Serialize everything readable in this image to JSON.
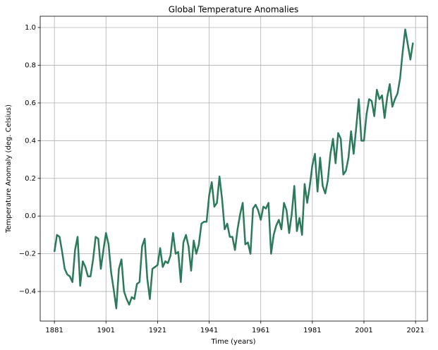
{
  "chart_data": {
    "type": "line",
    "title": "Global Temperature Anomalies",
    "x_label": "Time (years)",
    "y_label": "Temperature Anomaly (deg. Celsius)",
    "x": [
      1881,
      1882,
      1883,
      1884,
      1885,
      1886,
      1887,
      1888,
      1889,
      1890,
      1891,
      1892,
      1893,
      1894,
      1895,
      1896,
      1897,
      1898,
      1899,
      1900,
      1901,
      1902,
      1903,
      1904,
      1905,
      1906,
      1907,
      1908,
      1909,
      1910,
      1911,
      1912,
      1913,
      1914,
      1915,
      1916,
      1917,
      1918,
      1919,
      1920,
      1921,
      1922,
      1923,
      1924,
      1925,
      1926,
      1927,
      1928,
      1929,
      1930,
      1931,
      1932,
      1933,
      1934,
      1935,
      1936,
      1937,
      1938,
      1939,
      1940,
      1941,
      1942,
      1943,
      1944,
      1945,
      1946,
      1947,
      1948,
      1949,
      1950,
      1951,
      1952,
      1953,
      1954,
      1955,
      1956,
      1957,
      1958,
      1959,
      1960,
      1961,
      1962,
      1963,
      1964,
      1965,
      1966,
      1967,
      1968,
      1969,
      1970,
      1971,
      1972,
      1973,
      1974,
      1975,
      1976,
      1977,
      1978,
      1979,
      1980,
      1981,
      1982,
      1983,
      1984,
      1985,
      1986,
      1987,
      1988,
      1989,
      1990,
      1991,
      1992,
      1993,
      1994,
      1995,
      1996,
      1997,
      1998,
      1999,
      2000,
      2001,
      2002,
      2003,
      2004,
      2005,
      2006,
      2007,
      2008,
      2009,
      2010,
      2011,
      2012,
      2013,
      2014,
      2015,
      2016,
      2017,
      2018,
      2019,
      2020
    ],
    "series": [
      {
        "name": "Temperature Anomaly",
        "color": "#2b7a5b",
        "values": [
          -0.19,
          -0.1,
          -0.11,
          -0.19,
          -0.28,
          -0.31,
          -0.32,
          -0.35,
          -0.18,
          -0.11,
          -0.37,
          -0.24,
          -0.27,
          -0.32,
          -0.32,
          -0.23,
          -0.11,
          -0.12,
          -0.28,
          -0.18,
          -0.09,
          -0.15,
          -0.3,
          -0.39,
          -0.49,
          -0.28,
          -0.23,
          -0.4,
          -0.44,
          -0.47,
          -0.43,
          -0.44,
          -0.36,
          -0.35,
          -0.16,
          -0.12,
          -0.33,
          -0.44,
          -0.28,
          -0.27,
          -0.26,
          -0.17,
          -0.27,
          -0.24,
          -0.25,
          -0.21,
          -0.09,
          -0.2,
          -0.19,
          -0.35,
          -0.14,
          -0.1,
          -0.16,
          -0.29,
          -0.13,
          -0.2,
          -0.15,
          -0.04,
          -0.03,
          -0.03,
          0.11,
          0.18,
          0.05,
          0.07,
          0.21,
          0.09,
          -0.07,
          -0.04,
          -0.11,
          -0.11,
          -0.18,
          -0.07,
          0.01,
          0.07,
          -0.15,
          -0.14,
          -0.2,
          0.04,
          0.06,
          0.03,
          -0.02,
          0.05,
          0.04,
          0.07,
          -0.2,
          -0.1,
          -0.05,
          -0.02,
          -0.07,
          0.07,
          0.03,
          -0.09,
          0.01,
          0.16,
          -0.08,
          -0.01,
          -0.1,
          0.17,
          0.07,
          0.16,
          0.27,
          0.33,
          0.13,
          0.31,
          0.16,
          0.12,
          0.19,
          0.33,
          0.41,
          0.28,
          0.44,
          0.41,
          0.22,
          0.24,
          0.31,
          0.45,
          0.33,
          0.47,
          0.62,
          0.4,
          0.4,
          0.54,
          0.62,
          0.61,
          0.53,
          0.67,
          0.62,
          0.64,
          0.52,
          0.63,
          0.7,
          0.58,
          0.62,
          0.65,
          0.73,
          0.87,
          0.99,
          0.91,
          0.83,
          0.92
        ]
      }
    ],
    "xlim": [
      1875.5,
      2025.6
    ],
    "xticks": [
      1881,
      1901,
      1921,
      1941,
      1961,
      1981,
      2001,
      2021
    ],
    "ylim": [
      -0.557,
      1.06
    ],
    "yticks": [
      {
        "value": -0.4,
        "label": "−0.4"
      },
      {
        "value": -0.2,
        "label": "−0.2"
      },
      {
        "value": 0,
        "label": "0.0"
      },
      0.2,
      0.4,
      0.6,
      0.8,
      {
        "value": 1,
        "label": "1.0"
      }
    ],
    "grid": true
  }
}
